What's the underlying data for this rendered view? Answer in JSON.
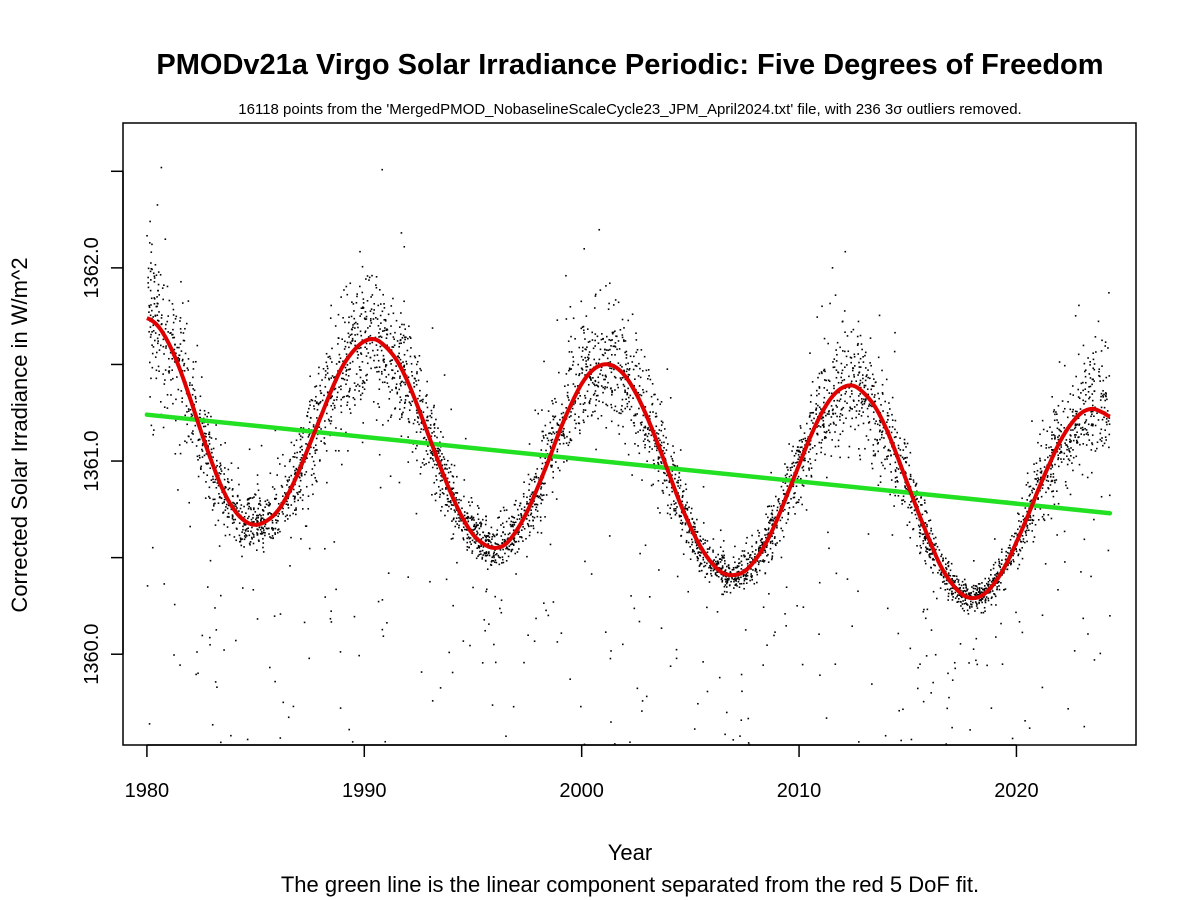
{
  "chart_data": {
    "type": "scatter",
    "title": "PMODv21a Virgo Solar Irradiance Periodic: Five Degrees of Freedom",
    "subtitle": "16118 points from the 'MergedPMOD_NobaselineScaleCycle23_JPM_April2024.txt' file, with 236 3σ outliers removed.",
    "xlabel": "Year",
    "ylabel": "Corrected Solar Irradiance in W/m^2",
    "caption": "The green line is the linear component separated from the red 5 DoF fit.",
    "xlim": [
      1978.9,
      2025.5
    ],
    "ylim": [
      1359.53,
      1362.75
    ],
    "x_ticks": [
      1980,
      1990,
      2000,
      2010,
      2020
    ],
    "x_tick_labels": [
      "1980",
      "1990",
      "2000",
      "2010",
      "2020"
    ],
    "y_ticks": [
      1360.0,
      1360.5,
      1361.0,
      1361.5,
      1362.0,
      1362.5
    ],
    "y_tick_labels": [
      "1360.0",
      "",
      "1361.0",
      "",
      "1362.0",
      ""
    ],
    "grid": false,
    "colors": {
      "points": "#000000",
      "fit": "#e00000",
      "linear": "#22e022",
      "axes": "#000000"
    },
    "series": [
      {
        "kind": "points",
        "x_range": [
          1980.0,
          2024.3
        ],
        "count_drawn": 5200,
        "description_values": "daily total solar irradiance observations"
      },
      {
        "kind": "fit",
        "x": [
          1980.0,
          1980.5,
          1981.0,
          1981.5,
          1982.0,
          1982.5,
          1983.0,
          1983.5,
          1984.0,
          1984.5,
          1985.0,
          1985.5,
          1986.0,
          1986.5,
          1987.0,
          1987.5,
          1988.0,
          1988.5,
          1989.0,
          1989.5,
          1990.0,
          1990.5,
          1991.0,
          1991.5,
          1992.0,
          1992.5,
          1993.0,
          1993.5,
          1994.0,
          1994.5,
          1995.0,
          1995.5,
          1996.0,
          1996.5,
          1997.0,
          1997.5,
          1998.0,
          1998.5,
          1999.0,
          1999.5,
          2000.0,
          2000.5,
          2001.0,
          2001.5,
          2002.0,
          2002.5,
          2003.0,
          2003.5,
          2004.0,
          2004.5,
          2005.0,
          2005.5,
          2006.0,
          2006.5,
          2007.0,
          2007.5,
          2008.0,
          2008.5,
          2009.0,
          2009.5,
          2010.0,
          2010.5,
          2011.0,
          2011.5,
          2012.0,
          2012.5,
          2013.0,
          2013.5,
          2014.0,
          2014.5,
          2015.0,
          2015.5,
          2016.0,
          2016.5,
          2017.0,
          2017.5,
          2018.0,
          2018.5,
          2019.0,
          2019.5,
          2020.0,
          2020.5,
          2021.0,
          2021.5,
          2022.0,
          2022.5,
          2023.0,
          2023.5,
          2024.0,
          2024.3
        ],
        "y": [
          1361.74,
          1361.7,
          1361.61,
          1361.48,
          1361.32,
          1361.15,
          1360.99,
          1360.85,
          1360.75,
          1360.69,
          1360.67,
          1360.69,
          1360.74,
          1360.83,
          1360.95,
          1361.09,
          1361.23,
          1361.37,
          1361.49,
          1361.57,
          1361.62,
          1361.63,
          1361.59,
          1361.52,
          1361.41,
          1361.27,
          1361.12,
          1360.97,
          1360.83,
          1360.71,
          1360.62,
          1360.57,
          1360.55,
          1360.57,
          1360.64,
          1360.74,
          1360.87,
          1361.01,
          1361.16,
          1361.29,
          1361.4,
          1361.47,
          1361.5,
          1361.49,
          1361.44,
          1361.35,
          1361.23,
          1361.09,
          1360.94,
          1360.79,
          1360.66,
          1360.55,
          1360.47,
          1360.42,
          1360.41,
          1360.43,
          1360.49,
          1360.58,
          1360.7,
          1360.84,
          1360.98,
          1361.12,
          1361.24,
          1361.33,
          1361.38,
          1361.39,
          1361.35,
          1361.28,
          1361.17,
          1361.03,
          1360.88,
          1360.73,
          1360.59,
          1360.46,
          1360.37,
          1360.31,
          1360.29,
          1360.31,
          1360.37,
          1360.46,
          1360.58,
          1360.71,
          1360.85,
          1360.98,
          1361.1,
          1361.19,
          1361.25,
          1361.27,
          1361.25,
          1361.23
        ]
      },
      {
        "kind": "linear",
        "x": [
          1980.0,
          2024.3
        ],
        "y": [
          1361.24,
          1360.73
        ]
      }
    ]
  }
}
